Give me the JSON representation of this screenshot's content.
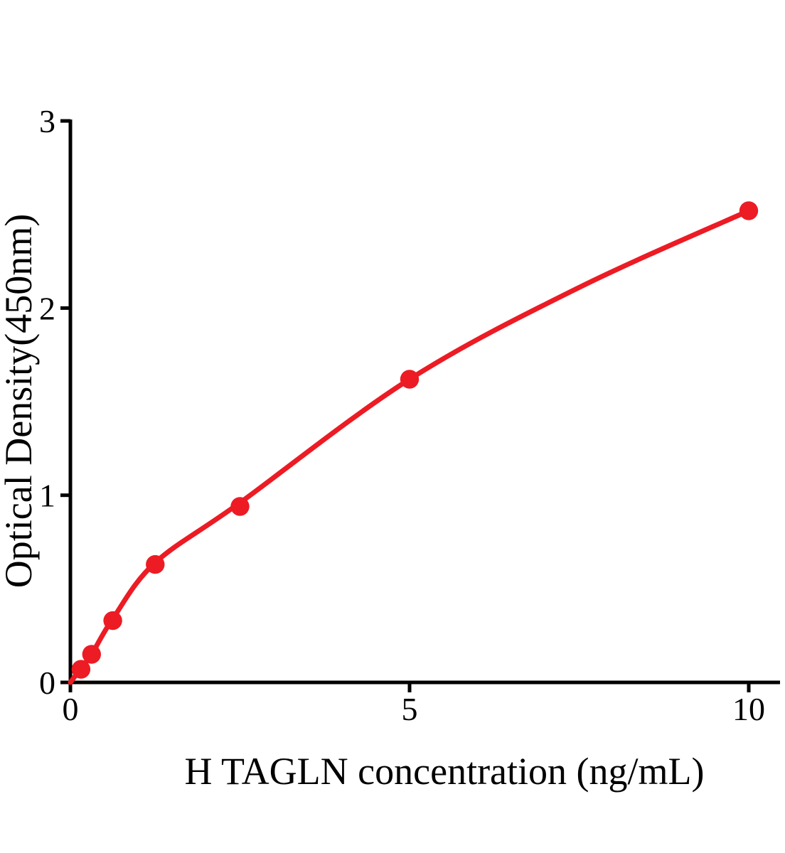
{
  "figure": {
    "background_color": "#ffffff"
  },
  "chart_data": {
    "type": "scatter",
    "title": "",
    "xlabel": "H TAGLN concentration (ng/mL)",
    "ylabel": "Optical Density(450nm)",
    "x_ticks": [
      0,
      5,
      10
    ],
    "x_tick_labels": [
      "0",
      "5",
      "10"
    ],
    "y_ticks": [
      0,
      1,
      2,
      3
    ],
    "y_tick_labels": [
      "0",
      "1",
      "2",
      "3"
    ],
    "xlim": [
      0,
      10.45
    ],
    "ylim": [
      0,
      3
    ],
    "grid": false,
    "legend": null,
    "points": [
      {
        "x": 0.156,
        "y": 0.07
      },
      {
        "x": 0.3125,
        "y": 0.15
      },
      {
        "x": 0.625,
        "y": 0.33
      },
      {
        "x": 1.25,
        "y": 0.63
      },
      {
        "x": 2.5,
        "y": 0.94
      },
      {
        "x": 5,
        "y": 1.62
      },
      {
        "x": 10,
        "y": 2.52
      }
    ],
    "fit_curve": [
      [
        0,
        0
      ],
      [
        0.156,
        0.075
      ],
      [
        0.3125,
        0.15
      ],
      [
        0.625,
        0.34
      ],
      [
        1.25,
        0.64
      ],
      [
        2.5,
        0.96
      ],
      [
        5,
        1.62
      ],
      [
        7.5,
        2.11
      ],
      [
        10,
        2.52
      ]
    ],
    "colors": {
      "series": "#EC1B24",
      "axis": "#000000"
    }
  }
}
